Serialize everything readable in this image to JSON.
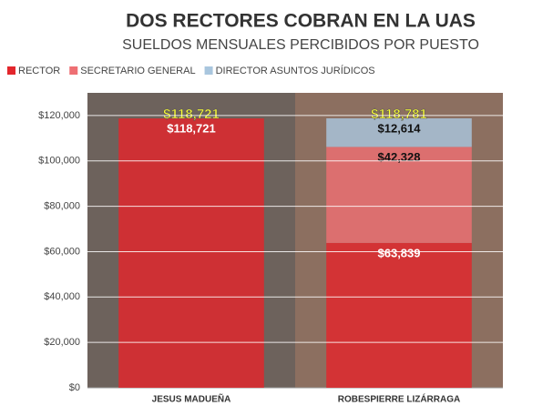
{
  "chart_data": {
    "type": "stacked-bar",
    "title": "DOS RECTORES COBRAN EN LA UAS",
    "subtitle": "SUELDOS MENSUALES PERCIBIDOS POR PUESTO",
    "categories": [
      "JESUS MADUEÑA",
      "ROBESPIERRE LIZÁRRAGA"
    ],
    "series": [
      {
        "name": "RECTOR",
        "color": "#e3262c",
        "values": [
          118721,
          63839
        ],
        "value_labels": [
          "$118,721",
          "$63,839"
        ],
        "label_color": "#ffffff"
      },
      {
        "name": "SECRETARIO GENERAL",
        "color": "#ee6f73",
        "values": [
          null,
          42328
        ],
        "value_labels": [
          null,
          "$42,328"
        ],
        "label_color": "#111111"
      },
      {
        "name": "DIRECTOR ASUNTOS JURÍDICOS",
        "color": "#a9c6de",
        "values": [
          null,
          12614
        ],
        "value_labels": [
          null,
          "$12,614"
        ],
        "label_color": "#111111"
      }
    ],
    "totals": {
      "values": [
        118721,
        118781
      ],
      "value_labels": [
        "$118,721",
        "$118,781"
      ],
      "color": "#ffff33"
    },
    "ylim": [
      0,
      130000
    ],
    "yticks": [
      {
        "value": 0,
        "label": "$0"
      },
      {
        "value": 20000,
        "label": "$20,000"
      },
      {
        "value": 40000,
        "label": "$40,000"
      },
      {
        "value": 60000,
        "label": "$60,000"
      },
      {
        "value": 80000,
        "label": "$80,000"
      },
      {
        "value": 100000,
        "label": "$100,000"
      },
      {
        "value": 120000,
        "label": "$120,000"
      }
    ],
    "grid": true
  }
}
